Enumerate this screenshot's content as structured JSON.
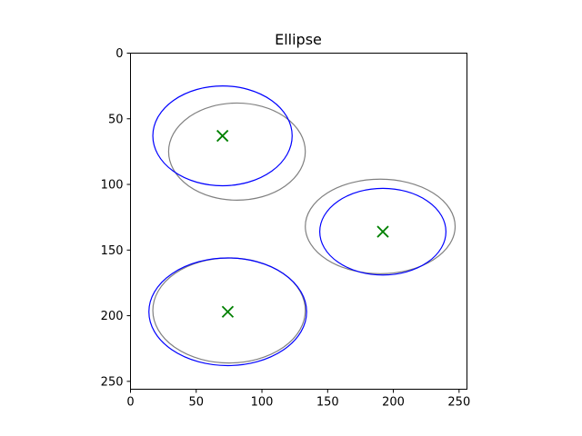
{
  "chart_data": {
    "type": "scatter",
    "title": "Ellipse",
    "xlabel": "",
    "ylabel": "",
    "xlim": [
      0,
      256
    ],
    "ylim": [
      256,
      0
    ],
    "x_ticks": [
      0,
      50,
      100,
      150,
      200,
      250
    ],
    "y_ticks": [
      0,
      50,
      100,
      150,
      200,
      250
    ],
    "grid": false,
    "ellipses": {
      "blue": [
        {
          "cx": 70,
          "cy": 63,
          "rx": 53,
          "ry": 38
        },
        {
          "cx": 192,
          "cy": 136,
          "rx": 48,
          "ry": 33
        },
        {
          "cx": 74,
          "cy": 197,
          "rx": 60,
          "ry": 41
        }
      ],
      "gray": [
        {
          "cx": 81,
          "cy": 75,
          "rx": 52,
          "ry": 37
        },
        {
          "cx": 190,
          "cy": 132,
          "rx": 57,
          "ry": 36
        },
        {
          "cx": 75,
          "cy": 196,
          "rx": 58,
          "ry": 40
        }
      ]
    },
    "markers": [
      {
        "x": 70,
        "y": 63
      },
      {
        "x": 192,
        "y": 136
      },
      {
        "x": 74,
        "y": 197
      }
    ],
    "colors": {
      "blue": "#0000ff",
      "gray": "#808080",
      "marker": "#008000"
    }
  }
}
